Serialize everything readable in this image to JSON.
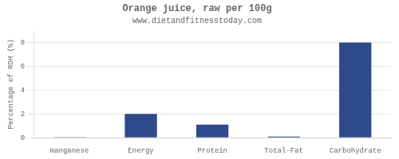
{
  "chart_data": {
    "type": "bar",
    "title": "Orange juice, raw per 100g",
    "subtitle": "www.dietandfitnesstoday.com",
    "categories": [
      "manganese",
      "Energy",
      "Protein",
      "Total-Fat",
      "Carbohydrate"
    ],
    "values": [
      0.05,
      2.0,
      1.1,
      0.1,
      8.0
    ],
    "color": "#2e4a8a",
    "ylabel": "Percentage of RDH (%)",
    "ylim": [
      0,
      9
    ],
    "yticks": [
      0,
      2,
      4,
      6,
      8
    ],
    "grid": true
  }
}
